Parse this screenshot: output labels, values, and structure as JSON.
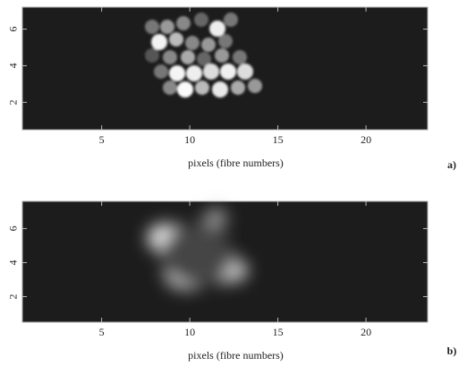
{
  "chart_data": [
    {
      "type": "image",
      "xlabel": "pixels (fibre numbers)",
      "panel_label": "a)",
      "xlim": [
        0.5,
        23.5
      ],
      "ylim": [
        0.5,
        7.2
      ],
      "xticks": [
        5,
        10,
        15,
        20
      ],
      "yticks": [
        2,
        4,
        6
      ]
    },
    {
      "type": "image",
      "xlabel": "pixels (fibre numbers)",
      "panel_label": "b)",
      "xlim": [
        0.5,
        23.5
      ],
      "ylim": [
        0.5,
        7.6
      ],
      "xticks": [
        5,
        10,
        15,
        20
      ],
      "yticks": [
        2,
        4,
        6
      ]
    }
  ]
}
